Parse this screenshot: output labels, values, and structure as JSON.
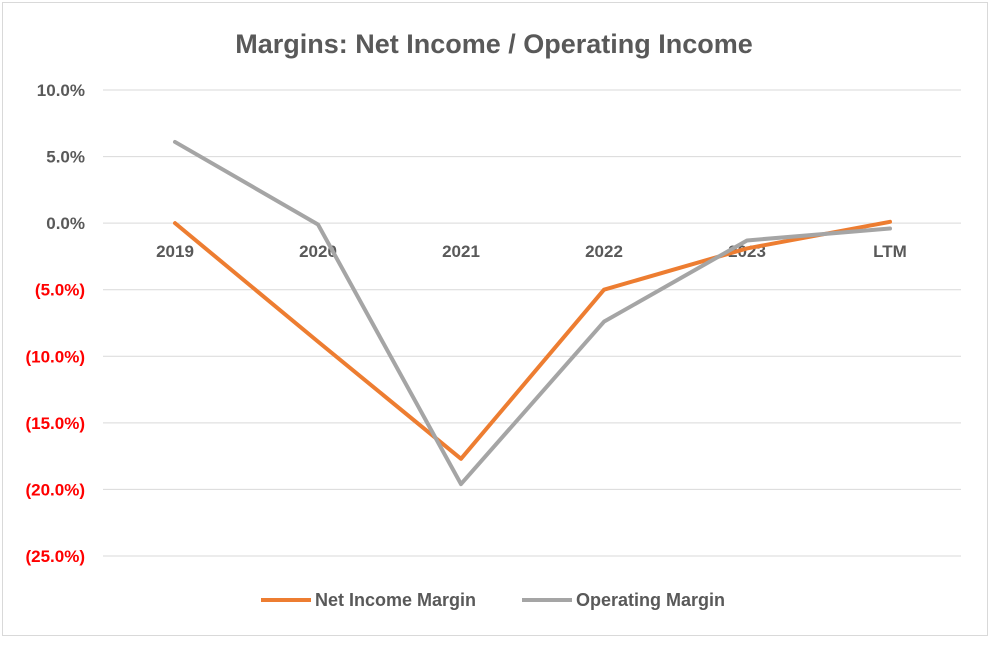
{
  "chart_data": {
    "type": "line",
    "title": "Margins: Net Income / Operating Income",
    "categories": [
      "2019",
      "2020",
      "2021",
      "2022",
      "2023",
      "LTM"
    ],
    "series": [
      {
        "name": "Net Income Margin",
        "color": "#ED7D31",
        "values": [
          0.0,
          -8.9,
          -17.7,
          -5.0,
          -1.9,
          0.1
        ]
      },
      {
        "name": "Operating Margin",
        "color": "#A5A5A5",
        "values": [
          6.1,
          -0.1,
          -19.6,
          -7.4,
          -1.3,
          -0.4
        ]
      }
    ],
    "y_ticks": [
      {
        "value": 10,
        "label": "10.0%"
      },
      {
        "value": 5,
        "label": "5.0%"
      },
      {
        "value": 0,
        "label": "0.0%"
      },
      {
        "value": -5,
        "label": "(5.0%)"
      },
      {
        "value": -10,
        "label": "(10.0%)"
      },
      {
        "value": -15,
        "label": "(15.0%)"
      },
      {
        "value": -20,
        "label": "(20.0%)"
      },
      {
        "value": -25,
        "label": "(25.0%)"
      }
    ],
    "ylim": [
      -25,
      10
    ],
    "ylabel": "",
    "xlabel": "",
    "grid": true,
    "legend": "bottom",
    "colors": {
      "positive_tick": "#595959",
      "negative_tick": "#FF0000",
      "gridline": "#D9D9D9"
    }
  }
}
